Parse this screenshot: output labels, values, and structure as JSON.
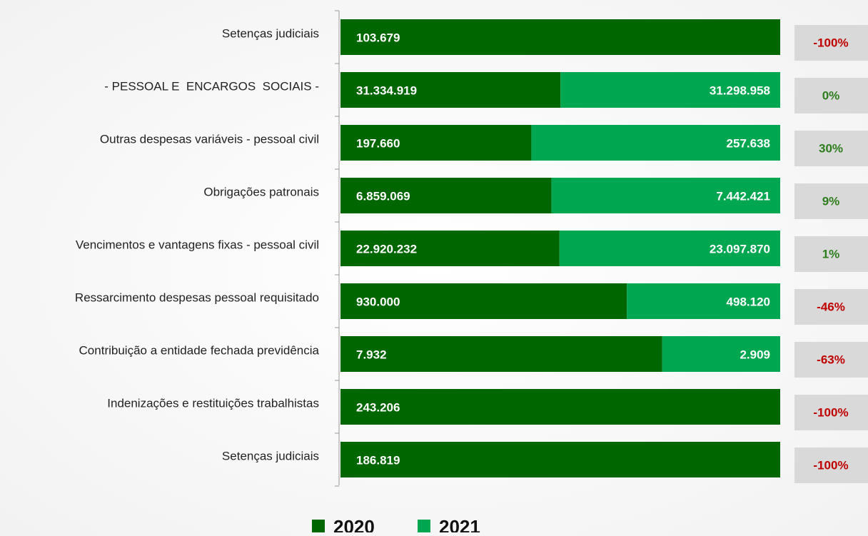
{
  "chart_data": {
    "type": "stacked_bar_100",
    "categories": [
      "Setenças judiciais",
      "- PESSOAL E  ENCARGOS  SOCIAIS -",
      "Outras despesas variáveis - pessoal civil",
      "Obrigações patronais",
      "Vencimentos e vantagens fixas - pessoal civil",
      "Ressarcimento despesas pessoal requisitado",
      "Contribuição a entidade fechada previdência",
      "Indenizações e restituições trabalhistas",
      "Setenças judiciais"
    ],
    "series": [
      {
        "name": "2020",
        "color": "#006600",
        "values": [
          103679,
          31334919,
          197660,
          6859069,
          22920232,
          930000,
          7932,
          243206,
          186819
        ],
        "value_labels": [
          "103.679",
          "31.334.919",
          "197.660",
          "6.859.069",
          "22.920.232",
          "930.000",
          "7.932",
          "243.206",
          "186.819"
        ]
      },
      {
        "name": "2021",
        "color": "#00a650",
        "values": [
          null,
          31298958,
          257638,
          7442421,
          23097870,
          498120,
          2909,
          null,
          null
        ],
        "value_labels": [
          null,
          "31.298.958",
          "257.638",
          "7.442.421",
          "23.097.870",
          "498.120",
          "2.909",
          null,
          null
        ]
      }
    ],
    "changes": [
      -100,
      0,
      30,
      9,
      1,
      -46,
      -63,
      -100,
      -100
    ],
    "change_labels": [
      "-100%",
      "0%",
      "30%",
      "9%",
      "1%",
      "-46%",
      "-63%",
      "-100%",
      "-100%"
    ],
    "positive_color": "#2e7d1e",
    "negative_color": "#c00000"
  }
}
